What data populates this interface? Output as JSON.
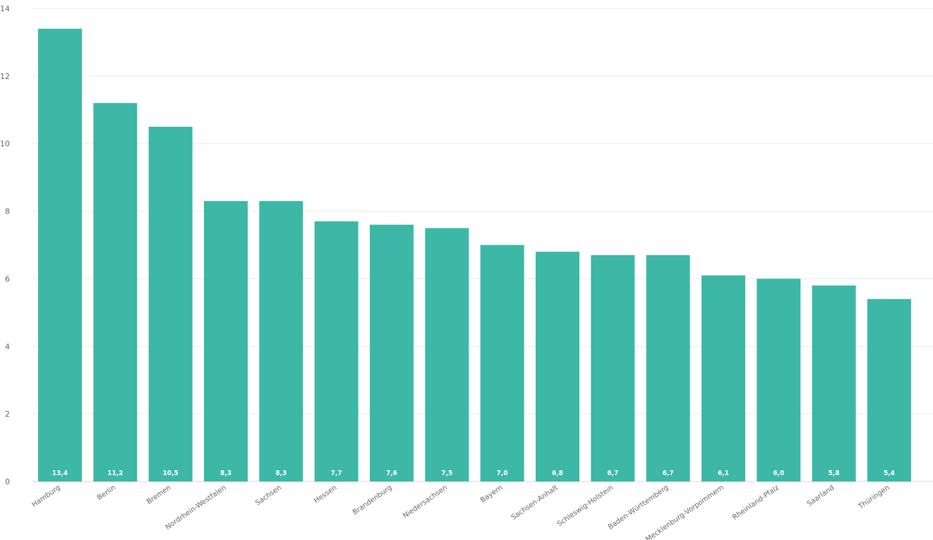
{
  "chart_data": {
    "type": "bar",
    "categories": [
      "Hamburg",
      "Berlin",
      "Bremen",
      "Nordrhein-Westfalen",
      "Sachsen",
      "Hessen",
      "Brandenburg",
      "Niedersachsen",
      "Bayern",
      "Sachsen-Anhalt",
      "Schleswig-Holstein",
      "Baden-Württemberg",
      "Mecklenburg-Vorpommern",
      "Rheinland-Pfalz",
      "Saarland",
      "Thüringen"
    ],
    "values": [
      13.4,
      11.2,
      10.5,
      8.3,
      8.3,
      7.7,
      7.6,
      7.5,
      7.0,
      6.8,
      6.7,
      6.7,
      6.1,
      6.0,
      5.8,
      5.4
    ],
    "data_labels": [
      "13,4",
      "11,2",
      "10,5",
      "8,3",
      "8,3",
      "7,7",
      "7,6",
      "7,5",
      "7,0",
      "6,8",
      "6,7",
      "6,7",
      "6,1",
      "6,0",
      "5,8",
      "5,4"
    ],
    "yticks": [
      0,
      2,
      4,
      6,
      8,
      10,
      12,
      14
    ],
    "ylim": [
      0,
      14
    ],
    "title": "",
    "xlabel": "",
    "ylabel": "",
    "grid": true,
    "bar_color": "#3db7a6",
    "data_label_color": "#ffffff"
  }
}
